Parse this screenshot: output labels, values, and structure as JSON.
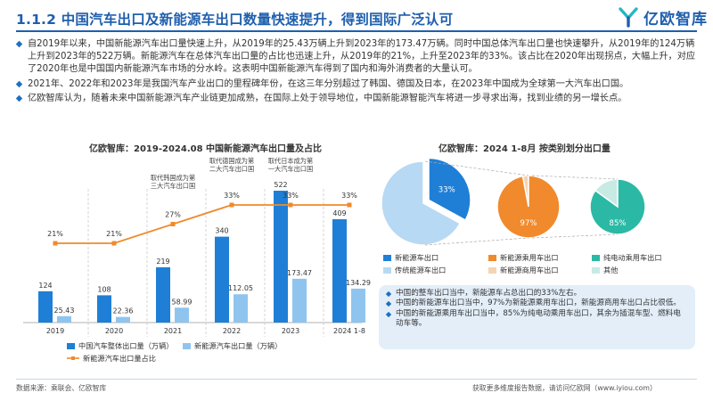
{
  "header": {
    "title": "1.1.2 中国汽车出口及新能源车出口数量快速提升，得到国际广泛认可",
    "logo_text": "亿欧智库"
  },
  "bullets": [
    "自2019年以来，中国新能源汽车出口量快速上升，从2019年的25.43万辆上升到2023年的173.47万辆。同时中国总体汽车出口量也快速攀升，从2019年的124万辆上升到2023年的522万辆。新能源汽车在总体汽车出口量的占比也迅速上升，从2019年的21%，上升至2023年的33%。该占比在2020年出现拐点，大幅上升，对应了2020年也是中国国内新能源汽车市场的分水岭。这表明中国新能源汽车得到了国内和海外消费者的大量认可。",
    "2021年、2022年和2023年是我国汽车产业出口的里程碑年份，在这三年分别超过了韩国、德国及日本，在2023年中国成为全球第一大汽车出口国。",
    "亿欧智库认为，随着未来中国新能源汽车产业链更加成熟，在国际上处于领导地位，中国新能源智能汽车将进一步寻求出海，找到业绩的另一增长点。"
  ],
  "left_chart": {
    "title": "亿欧智库：2019-2024.08 中国新能源汽车出口量及占比",
    "legend": {
      "total": "中国汽车整体出口量（万辆）",
      "nev": "新能源汽车出口量（万辆）",
      "ratio": "新能源汽车出口量占比"
    },
    "annotations": [
      "取代韩国成为第三大汽车出口国",
      "取代德国成为第二大汽车出口国",
      "取代日本成为第一大汽车出口国"
    ]
  },
  "right_chart": {
    "title": "亿欧智库：2024 1-8月 按类别划分出口量",
    "legend": [
      "新能源车出口",
      "传统能源车出口",
      "新能源乘用车出口",
      "新能源商用车出口",
      "纯电动乘用车出口",
      "其他"
    ]
  },
  "notes": [
    "中国的整车出口当中，新能源车占总出口的33%左右。",
    "中国的新能源车出口当中，97%为新能源乘用车出口，新能源商用车出口占比很低。",
    "中国的新能源乘用车出口当中，85%为纯电动乘用车出口，其余为插混车型、燃料电动车等。"
  ],
  "footer": {
    "source": "数据来源：乘联会、亿欧智库",
    "more": "获取更多维度报告数据，请访问亿欧网（www.iyiou.com）"
  },
  "colors": {
    "brand": "#1f5fae",
    "bar_total": "#1f7fd6",
    "bar_nev": "#8fc4ef",
    "line": "#f08a2c",
    "pie1_main": "#1f7fd6",
    "pie1_rest": "#b8d9f3",
    "pie2_main": "#f08a2c",
    "pie2_rest": "#f5d3b3",
    "pie3_main": "#2bb9a5",
    "pie3_rest": "#c7ebe4"
  },
  "chart_data": [
    {
      "type": "bar",
      "categories": [
        "2019",
        "2020",
        "2021",
        "2022",
        "2023",
        "2024 1-8"
      ],
      "series": [
        {
          "name": "中国汽车整体出口量（万辆）",
          "values": [
            124,
            108,
            219,
            340,
            522,
            409
          ]
        },
        {
          "name": "新能源汽车出口量（万辆）",
          "values": [
            25.43,
            22.36,
            58.99,
            112.05,
            173.47,
            134.29
          ]
        },
        {
          "name": "新能源汽车出口量占比",
          "values": [
            21,
            21,
            27,
            33,
            33,
            33
          ],
          "labels": [
            "21%",
            "21%",
            "27%",
            "33%",
            "33%",
            "33%"
          ]
        }
      ],
      "title": "亿欧智库：2019-2024.08 中国新能源汽车出口量及占比",
      "xlabel": "",
      "ylabel": ""
    },
    {
      "type": "pie",
      "title": "亿欧智库：2024 1-8月 按类别划分出口量",
      "pies": [
        {
          "labels": [
            "新能源车出口",
            "传统能源车出口"
          ],
          "values": [
            33,
            67
          ],
          "shown": "33%"
        },
        {
          "labels": [
            "新能源乘用车出口",
            "新能源商用车出口"
          ],
          "values": [
            97,
            3
          ],
          "shown": "97%"
        },
        {
          "labels": [
            "纯电动乘用车出口",
            "其他"
          ],
          "values": [
            85,
            15
          ],
          "shown": "85%"
        }
      ]
    }
  ]
}
